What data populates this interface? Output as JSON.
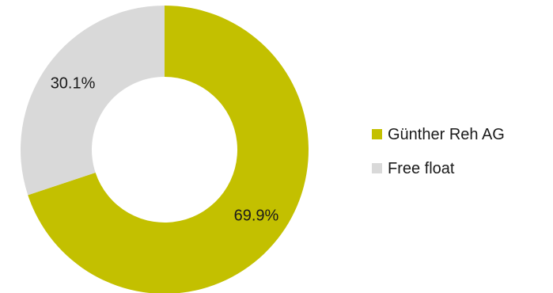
{
  "chart_data": {
    "type": "pie",
    "variant": "donut",
    "title": "",
    "legend_position": "right",
    "slices": [
      {
        "name": "Günther Reh AG",
        "value": 69.9,
        "label": "69.9%",
        "color": "#c3c000"
      },
      {
        "name": "Free float",
        "value": 30.1,
        "label": "30.1%",
        "color": "#d9d9d9"
      }
    ]
  }
}
